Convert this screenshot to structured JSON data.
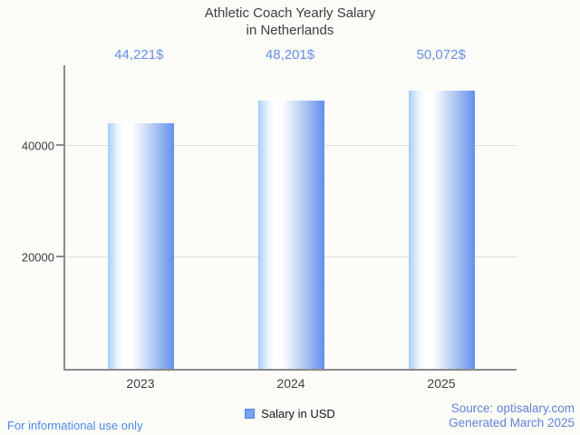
{
  "title": {
    "line1": "Athletic Coach Yearly Salary",
    "line2": "in Netherlands"
  },
  "chart_data": {
    "type": "bar",
    "title": "Athletic Coach Yearly Salary in Netherlands",
    "categories": [
      "2023",
      "2024",
      "2025"
    ],
    "series": [
      {
        "name": "Salary in USD",
        "values": [
          44221,
          48201,
          50072
        ]
      }
    ],
    "value_labels": [
      "44,221$",
      "48,201$",
      "50,072$"
    ],
    "ytick_values": [
      20000,
      40000
    ],
    "ytick_labels": [
      "20000",
      "40000"
    ],
    "ylim": [
      0,
      54575
    ],
    "xlabel": "",
    "ylabel": "",
    "grid": true,
    "legend_position": "bottom"
  },
  "legend": {
    "label": "Salary in USD"
  },
  "footer": {
    "disclaimer": "For informational use only",
    "source_line1": "Source: optisalary.com",
    "source_line2": "Generated March 2025"
  },
  "colors": {
    "background": "#fcfcf9",
    "text": "#3d3d3d",
    "annotation": "#6590e8",
    "axis": "#8a8a8a",
    "gridline": "#dedede",
    "bar_edge_left": "#a4cdf8",
    "bar_highlight": "#ffffff",
    "bar_edge_right": "#6390ee",
    "legend_fill": "#79a3f0",
    "legend_border": "#5182dd",
    "legend_text": "#141414",
    "footer_link": "#4c89f0",
    "source_text": "#6083d6"
  }
}
